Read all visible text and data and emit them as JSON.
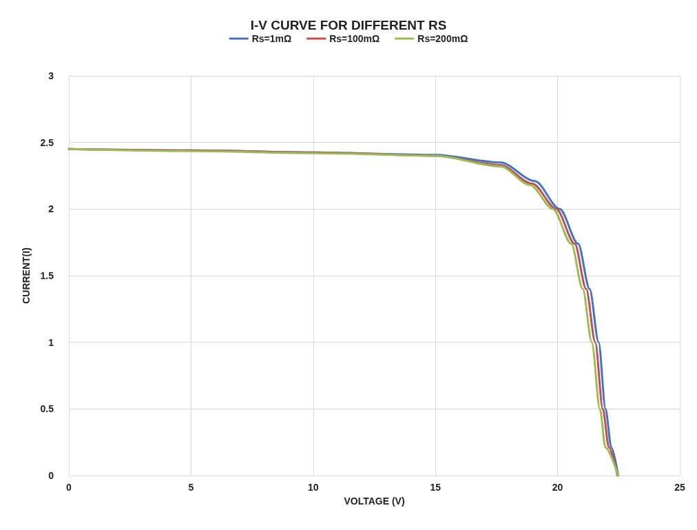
{
  "chart_data": {
    "type": "line",
    "title": "I-V CURVE FOR DIFFERENT RS",
    "xlabel": "VOLTAGE (V)",
    "ylabel": "CURRENT(I)",
    "xlim": [
      0,
      25
    ],
    "xticks": [
      0,
      5,
      10,
      15,
      20,
      25
    ],
    "ylim": [
      0,
      3
    ],
    "yticks": [
      0,
      0.5,
      1,
      1.5,
      2,
      2.5,
      3
    ],
    "grid": true,
    "legend": "top",
    "marker": "none",
    "line_style": "solid",
    "series": [
      {
        "name": "Rs=1mΩ",
        "color": "#4472c4",
        "x": [
          0,
          5,
          10,
          15,
          17.66,
          19.07,
          20.09,
          20.84,
          21.31,
          21.68,
          21.96,
          22.2,
          22.48
        ],
        "values": [
          2.45,
          2.44,
          2.425,
          2.407,
          2.35,
          2.21,
          2.0,
          1.74,
          1.4,
          1.0,
          0.5,
          0.21,
          0
        ]
      },
      {
        "name": "Rs=100mΩ",
        "color": "#c0504d",
        "x": [
          0,
          5,
          10,
          15,
          17.66,
          18.97,
          19.95,
          20.7,
          21.17,
          21.54,
          21.85,
          22.1,
          22.45
        ],
        "values": [
          2.45,
          2.44,
          2.425,
          2.4,
          2.33,
          2.19,
          2.0,
          1.74,
          1.4,
          1.0,
          0.5,
          0.21,
          0
        ]
      },
      {
        "name": "Rs=200mΩ",
        "color": "#9bbb59",
        "x": [
          0,
          5,
          10,
          15,
          17.66,
          18.88,
          19.81,
          20.56,
          21.03,
          21.4,
          21.73,
          21.96,
          22.48
        ],
        "values": [
          2.45,
          2.435,
          2.42,
          2.4,
          2.32,
          2.18,
          2.0,
          1.74,
          1.4,
          1.0,
          0.5,
          0.21,
          0
        ]
      }
    ]
  }
}
